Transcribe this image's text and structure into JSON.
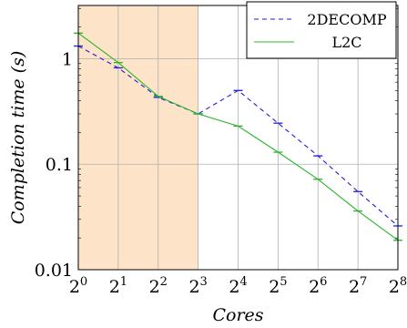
{
  "chart_data": {
    "type": "line",
    "xlabel": "Cores",
    "ylabel": "Completion time (s)",
    "x_scale": "log2",
    "y_scale": "log10",
    "xlim": [
      1,
      256
    ],
    "ylim": [
      0.01,
      3.2
    ],
    "x": [
      1,
      2,
      4,
      8,
      16,
      32,
      64,
      128,
      256
    ],
    "x_tick_labels": [
      {
        "base": "2",
        "exp": "0"
      },
      {
        "base": "2",
        "exp": "1"
      },
      {
        "base": "2",
        "exp": "2"
      },
      {
        "base": "2",
        "exp": "3"
      },
      {
        "base": "2",
        "exp": "4"
      },
      {
        "base": "2",
        "exp": "5"
      },
      {
        "base": "2",
        "exp": "6"
      },
      {
        "base": "2",
        "exp": "7"
      },
      {
        "base": "2",
        "exp": "8"
      }
    ],
    "y_ticks": [
      0.01,
      0.1,
      1
    ],
    "y_tick_labels": [
      "0.01",
      "0.1",
      "1"
    ],
    "grid": true,
    "legend_position": "top-right",
    "shaded_region": {
      "x_from": 1,
      "x_to": 8,
      "color": "#fde3c8"
    },
    "series": [
      {
        "name": "2DECOMP",
        "color": "#1f1fd6",
        "style": "dashed",
        "values": [
          1.32,
          0.82,
          0.43,
          0.3,
          0.5,
          0.245,
          0.12,
          0.055,
          0.026
        ]
      },
      {
        "name": "L2C",
        "color": "#2bb52b",
        "style": "solid",
        "values": [
          1.75,
          0.92,
          0.44,
          0.3,
          0.23,
          0.13,
          0.072,
          0.036,
          0.019
        ]
      }
    ]
  }
}
